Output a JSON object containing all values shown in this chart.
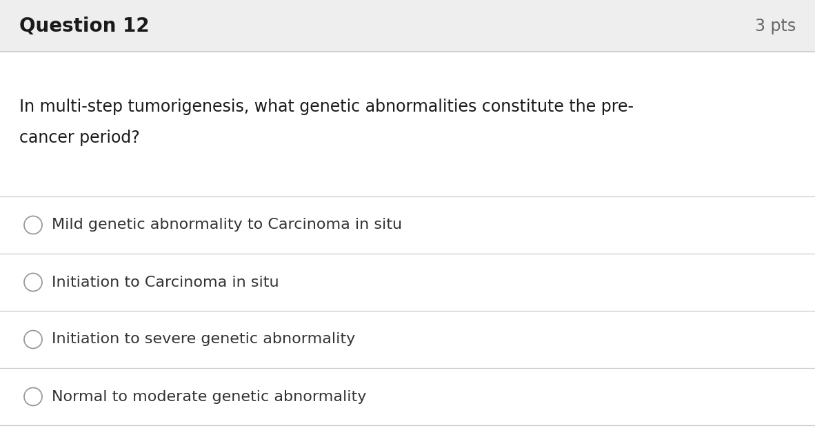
{
  "header_text": "Question 12",
  "pts_text": "3 pts",
  "question_text_line1": "In multi-step tumorigenesis, what genetic abnormalities constitute the pre-",
  "question_text_line2": "cancer period?",
  "options": [
    "Mild genetic abnormality to Carcinoma in situ",
    "Initiation to Carcinoma in situ",
    "Initiation to severe genetic abnormality",
    "Normal to moderate genetic abnormality"
  ],
  "header_bg_color": "#eeeeee",
  "body_bg_color": "#ffffff",
  "header_text_color": "#1a1a1a",
  "pts_text_color": "#666666",
  "question_text_color": "#1a1a1a",
  "option_text_color": "#333333",
  "divider_color": "#cccccc",
  "circle_edge_color": "#999999",
  "header_fontsize": 20,
  "pts_fontsize": 17,
  "question_fontsize": 17,
  "option_fontsize": 16,
  "fig_width": 11.82,
  "fig_height": 6.5,
  "dpi": 100
}
